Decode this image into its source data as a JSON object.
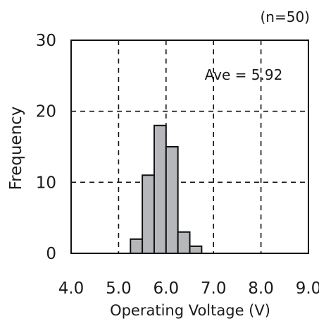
{
  "chart_data": {
    "type": "bar",
    "subtype": "histogram",
    "sample_label": "(n=50)",
    "annotation": "Ave = 5.92",
    "xlabel": "Operating Voltage (V)",
    "ylabel": "Frequency",
    "xlim": [
      4.0,
      9.0
    ],
    "ylim": [
      0,
      30
    ],
    "x_ticks": [
      "4.0",
      "5.0",
      "6.0",
      "7.0",
      "8.0",
      "9.0"
    ],
    "y_ticks": [
      "0",
      "10",
      "20",
      "30"
    ],
    "bin_width": 0.25,
    "bins": [
      {
        "start": 5.25,
        "end": 5.5,
        "count": 2
      },
      {
        "start": 5.5,
        "end": 5.75,
        "count": 11
      },
      {
        "start": 5.75,
        "end": 6.0,
        "count": 18
      },
      {
        "start": 6.0,
        "end": 6.25,
        "count": 15
      },
      {
        "start": 6.25,
        "end": 6.5,
        "count": 3
      },
      {
        "start": 6.5,
        "end": 6.75,
        "count": 1
      }
    ],
    "grid": true,
    "grid_style": "dashed",
    "bar_color": "#b5b7bb",
    "bar_edge_color": "#111111"
  }
}
